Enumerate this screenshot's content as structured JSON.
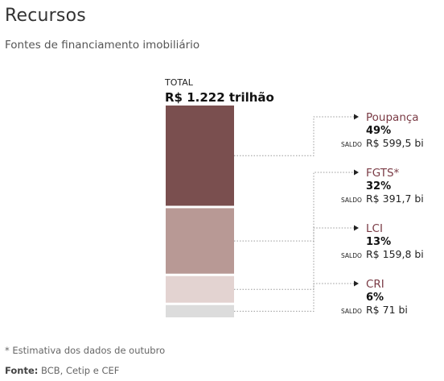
{
  "header": {
    "title": "Recursos",
    "subtitle": "Fontes de financiamento imobiliário"
  },
  "chart_data": {
    "type": "bar",
    "stacked": true,
    "total_caption": "TOTAL",
    "total_label": "R$ 1.222 trilhão",
    "balance_caption": "SALDO",
    "segments": [
      {
        "name": "Poupança",
        "percent": 49,
        "percent_label": "49%",
        "value": 599.5,
        "value_label": "R$ 599,5 bi",
        "color": "#7a4f4f"
      },
      {
        "name": "FGTS*",
        "percent": 32,
        "percent_label": "32%",
        "value": 391.7,
        "value_label": "R$ 391,7 bi",
        "color": "#b89995"
      },
      {
        "name": "LCI",
        "percent": 13,
        "percent_label": "13%",
        "value": 159.8,
        "value_label": "R$ 159,8 bi",
        "color": "#e3d3d1"
      },
      {
        "name": "CRI",
        "percent": 6,
        "percent_label": "6%",
        "value": 71,
        "value_label": "R$ 71 bi",
        "color": "#dcdcdc"
      }
    ],
    "label_color": "#7a3b45"
  },
  "footer": {
    "note": "* Estimativa dos dados de outubro",
    "source_label": "Fonte:",
    "source_text": "BCB, Cetip e CEF"
  }
}
